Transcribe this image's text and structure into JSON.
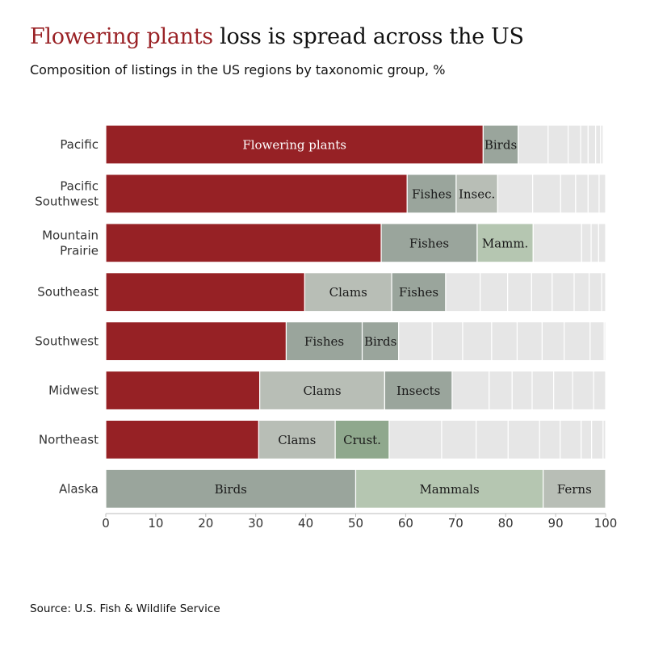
{
  "header": {
    "title_highlight": "Flowering plants",
    "title_rest": " loss is spread across the US",
    "subtitle": "Composition of listings in the US regions by taxonomic group, %"
  },
  "footer": {
    "source": "Source: U.S. Fish & Wildlife Service"
  },
  "colors": {
    "flowering": "#962125",
    "grey_green": "#9aa59c",
    "light_grey_green": "#b8beb6",
    "mammal_green": "#b5c6b1",
    "crust_green": "#8fa88d",
    "other": "#e6e6e6",
    "axis_text": "#333333"
  },
  "chart_data": {
    "type": "bar",
    "orientation": "horizontal",
    "stacked": true,
    "title": "Flowering plants loss is spread across the US",
    "subtitle": "Composition of listings in the US regions by taxonomic group, %",
    "xlim": [
      0,
      100
    ],
    "xticks": [
      0,
      10,
      20,
      30,
      40,
      50,
      60,
      70,
      80,
      90,
      100
    ],
    "grid": false,
    "legend": "none",
    "categories": [
      {
        "label": [
          "Pacific"
        ],
        "segments": [
          {
            "name": "Flowering plants",
            "value": 75.5,
            "color": "flowering",
            "label": "Flowering plants"
          },
          {
            "name": "Birds",
            "value": 7,
            "color": "grey_green",
            "label": "Birds"
          },
          {
            "name": "Other",
            "value": 6,
            "color": "other",
            "label": ""
          },
          {
            "name": "Other",
            "value": 4,
            "color": "other",
            "label": ""
          },
          {
            "name": "Other",
            "value": 2.5,
            "color": "other",
            "label": ""
          },
          {
            "name": "Other",
            "value": 1.5,
            "color": "other",
            "label": ""
          },
          {
            "name": "Other",
            "value": 1.5,
            "color": "other",
            "label": ""
          },
          {
            "name": "Other",
            "value": 1,
            "color": "other",
            "label": ""
          },
          {
            "name": "Other",
            "value": 0.5,
            "color": "other",
            "label": ""
          }
        ]
      },
      {
        "label": [
          "Pacific",
          "Southwest"
        ],
        "segments": [
          {
            "name": "Flowering plants",
            "value": 60.3,
            "color": "flowering",
            "label": ""
          },
          {
            "name": "Fishes",
            "value": 9.8,
            "color": "grey_green",
            "label": "Fishes"
          },
          {
            "name": "Insects",
            "value": 8.3,
            "color": "light_grey_green",
            "label": "Insec."
          },
          {
            "name": "Other",
            "value": 7,
            "color": "other",
            "label": ""
          },
          {
            "name": "Other",
            "value": 5.6,
            "color": "other",
            "label": ""
          },
          {
            "name": "Other",
            "value": 3,
            "color": "other",
            "label": ""
          },
          {
            "name": "Other",
            "value": 2.5,
            "color": "other",
            "label": ""
          },
          {
            "name": "Other",
            "value": 2.2,
            "color": "other",
            "label": ""
          },
          {
            "name": "Other",
            "value": 1.3,
            "color": "other",
            "label": ""
          }
        ]
      },
      {
        "label": [
          "Mountain",
          "Prairie"
        ],
        "segments": [
          {
            "name": "Flowering plants",
            "value": 55.1,
            "color": "flowering",
            "label": ""
          },
          {
            "name": "Fishes",
            "value": 19.2,
            "color": "grey_green",
            "label": "Fishes"
          },
          {
            "name": "Mammals",
            "value": 11.2,
            "color": "mammal_green",
            "label": "Mamm."
          },
          {
            "name": "Other",
            "value": 9.7,
            "color": "other",
            "label": ""
          },
          {
            "name": "Other",
            "value": 1.9,
            "color": "other",
            "label": ""
          },
          {
            "name": "Other",
            "value": 1.5,
            "color": "other",
            "label": ""
          },
          {
            "name": "Other",
            "value": 1.4,
            "color": "other",
            "label": ""
          }
        ]
      },
      {
        "label": [
          "Southeast"
        ],
        "segments": [
          {
            "name": "Flowering plants",
            "value": 39.8,
            "color": "flowering",
            "label": ""
          },
          {
            "name": "Clams",
            "value": 17.4,
            "color": "light_grey_green",
            "label": "Clams"
          },
          {
            "name": "Fishes",
            "value": 10.8,
            "color": "grey_green",
            "label": "Fishes"
          },
          {
            "name": "Other",
            "value": 6.9,
            "color": "other",
            "label": ""
          },
          {
            "name": "Other",
            "value": 5.5,
            "color": "other",
            "label": ""
          },
          {
            "name": "Other",
            "value": 4.8,
            "color": "other",
            "label": ""
          },
          {
            "name": "Other",
            "value": 4.1,
            "color": "other",
            "label": ""
          },
          {
            "name": "Other",
            "value": 4.4,
            "color": "other",
            "label": ""
          },
          {
            "name": "Other",
            "value": 3,
            "color": "other",
            "label": ""
          },
          {
            "name": "Other",
            "value": 2.5,
            "color": "other",
            "label": ""
          },
          {
            "name": "Other",
            "value": 0.8,
            "color": "other",
            "label": ""
          }
        ]
      },
      {
        "label": [
          "Southwest"
        ],
        "segments": [
          {
            "name": "Flowering plants",
            "value": 36.1,
            "color": "flowering",
            "label": ""
          },
          {
            "name": "Fishes",
            "value": 15.2,
            "color": "grey_green",
            "label": "Fishes"
          },
          {
            "name": "Birds",
            "value": 7.3,
            "color": "grey_green",
            "label": "Birds"
          },
          {
            "name": "Other",
            "value": 6.7,
            "color": "other",
            "label": ""
          },
          {
            "name": "Other",
            "value": 6.1,
            "color": "other",
            "label": ""
          },
          {
            "name": "Other",
            "value": 5.8,
            "color": "other",
            "label": ""
          },
          {
            "name": "Other",
            "value": 5.1,
            "color": "other",
            "label": ""
          },
          {
            "name": "Other",
            "value": 5,
            "color": "other",
            "label": ""
          },
          {
            "name": "Other",
            "value": 4.4,
            "color": "other",
            "label": ""
          },
          {
            "name": "Other",
            "value": 5.2,
            "color": "other",
            "label": ""
          },
          {
            "name": "Other",
            "value": 2.8,
            "color": "other",
            "label": ""
          },
          {
            "name": "Other",
            "value": 0.3,
            "color": "other",
            "label": ""
          }
        ]
      },
      {
        "label": [
          "Midwest"
        ],
        "segments": [
          {
            "name": "Flowering plants",
            "value": 30.8,
            "color": "flowering",
            "label": ""
          },
          {
            "name": "Clams",
            "value": 25,
            "color": "light_grey_green",
            "label": "Clams"
          },
          {
            "name": "Insects",
            "value": 13.5,
            "color": "grey_green",
            "label": "Insects"
          },
          {
            "name": "Other",
            "value": 7.4,
            "color": "other",
            "label": ""
          },
          {
            "name": "Other",
            "value": 4.6,
            "color": "other",
            "label": ""
          },
          {
            "name": "Other",
            "value": 4,
            "color": "other",
            "label": ""
          },
          {
            "name": "Other",
            "value": 4.3,
            "color": "other",
            "label": ""
          },
          {
            "name": "Other",
            "value": 3.8,
            "color": "other",
            "label": ""
          },
          {
            "name": "Other",
            "value": 4.2,
            "color": "other",
            "label": ""
          },
          {
            "name": "Other",
            "value": 2.4,
            "color": "other",
            "label": ""
          }
        ]
      },
      {
        "label": [
          "Northeast"
        ],
        "segments": [
          {
            "name": "Flowering plants",
            "value": 30.6,
            "color": "flowering",
            "label": ""
          },
          {
            "name": "Clams",
            "value": 15.3,
            "color": "light_grey_green",
            "label": "Clams"
          },
          {
            "name": "Crustaceans",
            "value": 10.8,
            "color": "crust_green",
            "label": "Crust."
          },
          {
            "name": "Other",
            "value": 10.5,
            "color": "other",
            "label": ""
          },
          {
            "name": "Other",
            "value": 6.9,
            "color": "other",
            "label": ""
          },
          {
            "name": "Other",
            "value": 6.4,
            "color": "other",
            "label": ""
          },
          {
            "name": "Other",
            "value": 6.3,
            "color": "other",
            "label": ""
          },
          {
            "name": "Other",
            "value": 4.1,
            "color": "other",
            "label": ""
          },
          {
            "name": "Other",
            "value": 4.2,
            "color": "other",
            "label": ""
          },
          {
            "name": "Other",
            "value": 2.1,
            "color": "other",
            "label": ""
          },
          {
            "name": "Other",
            "value": 2.3,
            "color": "other",
            "label": ""
          },
          {
            "name": "Other",
            "value": 0.5,
            "color": "other",
            "label": ""
          }
        ]
      },
      {
        "label": [
          "Alaska"
        ],
        "segments": [
          {
            "name": "Birds",
            "value": 50,
            "color": "grey_green",
            "label": "Birds"
          },
          {
            "name": "Mammals",
            "value": 37.5,
            "color": "mammal_green",
            "label": "Mammals"
          },
          {
            "name": "Ferns",
            "value": 12.5,
            "color": "light_grey_green",
            "label": "Ferns"
          }
        ]
      }
    ]
  }
}
